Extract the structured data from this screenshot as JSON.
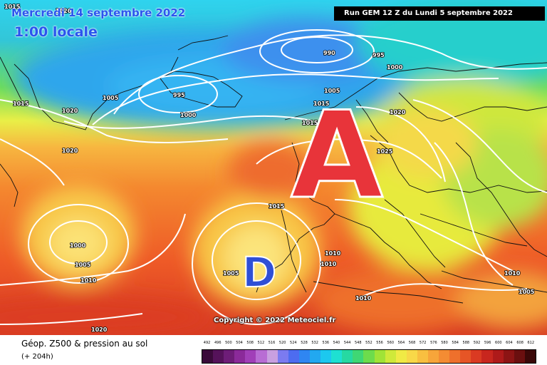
{
  "header": {
    "date_label": "Mercredi 14 septembre 2022",
    "time_label": "1:00 locale",
    "run_label": "Run GEM 12 Z du Lundi 5 septembre 2022"
  },
  "map": {
    "isobar_labels": [
      "1015",
      "1020",
      "1015",
      "1005",
      "1020",
      "995",
      "1000",
      "990",
      "995",
      "1000",
      "1005",
      "1015",
      "1020",
      "1025",
      "1020",
      "1000",
      "1005",
      "1010",
      "1015",
      "1005",
      "1010",
      "1010",
      "1010",
      "1010",
      "1005",
      "1020",
      "1015"
    ],
    "high_symbol": "A",
    "low_symbol": "D",
    "copyright": "Copyright © 2022 Meteociel.fr",
    "isobar_color": "#ffffff",
    "coast_color": "#111111"
  },
  "footer": {
    "title": "Géop. Z500 & pression au sol",
    "lead": "(+ 204h)"
  },
  "scale": {
    "labels": [
      "492",
      "496",
      "500",
      "504",
      "508",
      "512",
      "516",
      "520",
      "524",
      "528",
      "532",
      "536",
      "540",
      "544",
      "548",
      "552",
      "556",
      "560",
      "564",
      "568",
      "572",
      "576",
      "580",
      "584",
      "588",
      "592",
      "596",
      "600",
      "604",
      "608",
      "612"
    ],
    "colors": [
      "#3a0a3a",
      "#55125a",
      "#6e1d78",
      "#8b2a9a",
      "#a13fb8",
      "#b86dd4",
      "#c9a0e0",
      "#7b7bf0",
      "#4d6cf0",
      "#2f86f2",
      "#22a8f0",
      "#1cc8ef",
      "#1ee0d2",
      "#26d9a2",
      "#3fd774",
      "#6ddc4c",
      "#a0e337",
      "#cfe93a",
      "#f0ea45",
      "#f8d848",
      "#f8bf40",
      "#f7a53a",
      "#f48c33",
      "#ee702c",
      "#e65526",
      "#da3a22",
      "#c8261e",
      "#ae1a1a",
      "#8c1414",
      "#6a0f0f",
      "#3a0808"
    ]
  }
}
